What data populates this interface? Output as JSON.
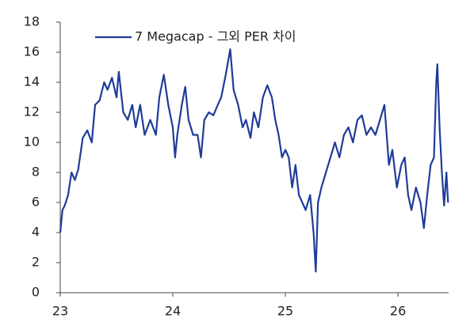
{
  "chart_data": {
    "type": "line",
    "x": [
      23.0,
      23.02,
      23.04,
      23.07,
      23.1,
      23.13,
      23.16,
      23.2,
      23.24,
      23.28,
      23.31,
      23.35,
      23.39,
      23.42,
      23.46,
      23.5,
      23.52,
      23.56,
      23.6,
      23.64,
      23.67,
      23.71,
      23.75,
      23.8,
      23.85,
      23.88,
      23.92,
      23.96,
      24.0,
      24.02,
      24.04,
      24.08,
      24.11,
      24.14,
      24.18,
      24.22,
      24.25,
      24.28,
      24.32,
      24.36,
      24.4,
      24.43,
      24.47,
      24.51,
      24.54,
      24.58,
      24.62,
      24.65,
      24.69,
      24.72,
      24.76,
      24.8,
      24.84,
      24.88,
      24.91,
      24.94,
      24.97,
      25.0,
      25.03,
      25.06,
      25.09,
      25.12,
      25.15,
      25.18,
      25.22,
      25.25,
      25.27,
      25.29,
      25.32,
      25.36,
      25.4,
      25.44,
      25.48,
      25.52,
      25.56,
      25.6,
      25.64,
      25.68,
      25.72,
      25.76,
      25.8,
      25.84,
      25.88,
      25.92,
      25.95,
      25.99,
      26.03,
      26.06,
      26.09,
      26.12,
      26.16,
      26.2,
      26.23,
      26.26,
      26.29,
      26.32,
      26.34,
      26.35,
      26.37,
      26.39,
      26.41,
      26.43,
      26.445
    ],
    "series": [
      {
        "name": "7 Megacap - 그외 PER 차이",
        "color": "#1f3c99",
        "values": [
          4.0,
          5.5,
          5.8,
          6.5,
          8.0,
          7.5,
          8.2,
          10.3,
          10.8,
          10.0,
          12.5,
          12.8,
          14.0,
          13.5,
          14.3,
          13.0,
          14.7,
          12.0,
          11.5,
          12.5,
          11.0,
          12.5,
          10.5,
          11.5,
          10.5,
          13.0,
          14.5,
          12.5,
          11.0,
          9.0,
          10.5,
          12.5,
          13.7,
          11.5,
          10.5,
          10.5,
          9.0,
          11.5,
          12.0,
          11.8,
          12.5,
          13.0,
          14.5,
          16.2,
          13.5,
          12.5,
          11.0,
          11.5,
          10.3,
          12.0,
          11.0,
          13.0,
          13.8,
          13.0,
          11.5,
          10.5,
          9.0,
          9.5,
          9.0,
          7.0,
          8.5,
          6.5,
          6.0,
          5.5,
          6.5,
          4.0,
          1.4,
          6.0,
          7.0,
          8.0,
          9.0,
          10.0,
          9.0,
          10.5,
          11.0,
          10.0,
          11.5,
          11.8,
          10.5,
          11.0,
          10.5,
          11.5,
          12.5,
          8.5,
          9.5,
          7.0,
          8.5,
          9.0,
          6.5,
          5.5,
          7.0,
          6.0,
          4.3,
          6.5,
          8.5,
          9.0,
          14.0,
          15.2,
          11.0,
          8.0,
          5.8,
          8.0,
          6.0
        ]
      }
    ],
    "xlim": [
      23,
      26.45
    ],
    "xticks": [
      23,
      24,
      25,
      26
    ],
    "ylim": [
      0,
      18
    ],
    "yticks": [
      0,
      2,
      4,
      6,
      8,
      10,
      12,
      14,
      16,
      18
    ],
    "legend": "top-left"
  }
}
